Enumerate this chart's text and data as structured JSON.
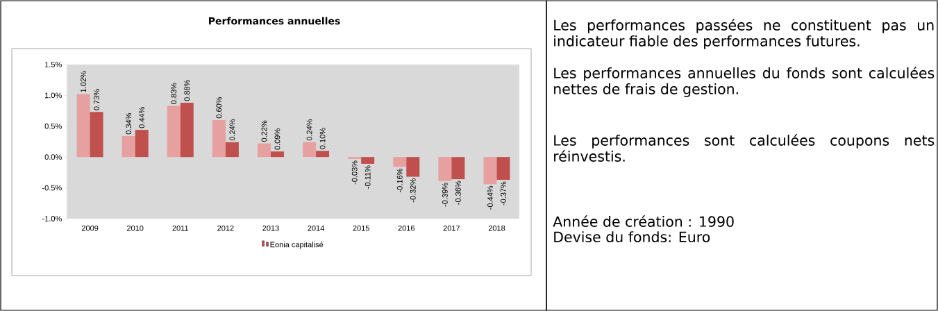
{
  "chart_data": {
    "type": "bar",
    "title": "Performances annuelles",
    "categories": [
      "2009",
      "2010",
      "2011",
      "2012",
      "2013",
      "2014",
      "2015",
      "2016",
      "2017",
      "2018"
    ],
    "series": [
      {
        "color": "#e6a0a0",
        "values": [
          1.02,
          0.34,
          0.83,
          0.6,
          0.22,
          0.24,
          -0.03,
          -0.16,
          -0.39,
          -0.44
        ],
        "value_labels": [
          "1.02%",
          "0.34%",
          "0.83%",
          "0.60%",
          "0.22%",
          "0.24%",
          "-0.03%",
          "-0.16%",
          "-0.39%",
          "-0.44%"
        ]
      },
      {
        "name": "Eonia capitalisé",
        "color": "#c0504d",
        "values": [
          0.73,
          0.44,
          0.88,
          0.24,
          0.09,
          0.1,
          -0.11,
          -0.32,
          -0.36,
          -0.37
        ],
        "value_labels": [
          "0.73%",
          "0.44%",
          "0.88%",
          "0.24%",
          "0.09%",
          "0.10%",
          "-0.11%",
          "-0.32%",
          "-0.36%",
          "-0.37%"
        ]
      }
    ],
    "ylim": [
      -1.0,
      1.5
    ],
    "yticks": [
      {
        "value": -1.0,
        "label": "-1.0%"
      },
      {
        "value": -0.5,
        "label": "-0.5%"
      },
      {
        "value": 0.0,
        "label": "0.0%"
      },
      {
        "value": 0.5,
        "label": "0.5%"
      },
      {
        "value": 1.0,
        "label": "1.0%"
      },
      {
        "value": 1.5,
        "label": "1.5%"
      }
    ],
    "grid": false,
    "legend": "bottom",
    "annotations": [
      "Les performances passées ne constituent pas un indicateur fiable des performances futures.",
      "Les performances annuelles du fonds sont calculées nettes de frais de gestion.",
      "Les performances sont calculées coupons nets réinvestis.",
      "Année de création : 1990",
      "Devise du fonds: Euro"
    ]
  }
}
